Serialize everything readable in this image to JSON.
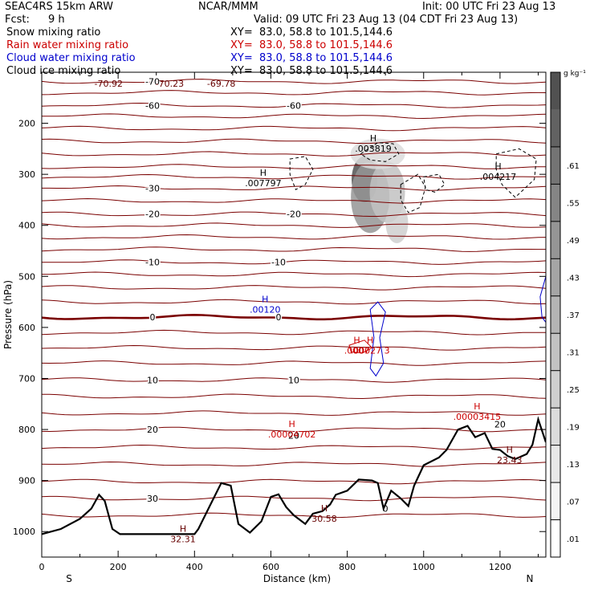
{
  "header": {
    "model": "SEAC4RS 15km ARW",
    "center": "NCAR/MMM",
    "init": "Init: 00 UTC Fri 23 Aug 13",
    "fcst_label": "Fcst:",
    "fcst_value": "9 h",
    "valid": "Valid: 09 UTC Fri 23 Aug 13 (04 CDT Fri 23 Aug 13)"
  },
  "fields": [
    {
      "name": "Snow mixing ratio",
      "xy": "XY=  83.0, 58.8 to 101.5,144.6",
      "color": "#000000"
    },
    {
      "name": "Rain water mixing ratio",
      "xy": "XY=  83.0, 58.8 to 101.5,144.6",
      "color": "#cc0000"
    },
    {
      "name": "Cloud water mixing ratio",
      "xy": "XY=  83.0, 58.8 to 101.5,144.6",
      "color": "#0000cc"
    },
    {
      "name": "Cloud ice mixing ratio",
      "xy": "XY=  83.0, 58.8 to 101.5,144.6",
      "color": "#000000"
    }
  ],
  "chart_data": {
    "type": "cross-section",
    "xlabel": "Distance (km)",
    "ylabel": "Pressure (hPa)",
    "xlim": [
      0,
      1320
    ],
    "ylim": [
      1050,
      100
    ],
    "x_ticks": [
      0,
      200,
      400,
      600,
      800,
      1000,
      1200
    ],
    "x_tick_labels": [
      "0",
      "200",
      "400",
      "600",
      "800",
      "1000",
      "1200"
    ],
    "y_ticks": [
      200,
      300,
      400,
      500,
      600,
      700,
      800,
      900,
      1000
    ],
    "y_tick_labels": [
      "200",
      "300",
      "400",
      "500",
      "600",
      "700",
      "800",
      "900",
      "1000"
    ],
    "end_labels": {
      "left": "S",
      "right": "N"
    },
    "colorbar": {
      "unit": "g kg⁻¹",
      "ticks": [
        ".01",
        ".07",
        ".13",
        ".19",
        ".25",
        ".31",
        ".37",
        ".43",
        ".49",
        ".55",
        ".61"
      ],
      "colors": [
        "#ffffff",
        "#f4f4f4",
        "#e8e8e8",
        "#dcdcdc",
        "#cfcfcf",
        "#c2c2c2",
        "#b4b4b4",
        "#a5a5a5",
        "#959595",
        "#858585",
        "#747474",
        "#626262",
        "#515151"
      ]
    },
    "temperature_contours": [
      {
        "p": 118,
        "label": "-70"
      },
      {
        "p": 140,
        "label": ""
      },
      {
        "p": 165,
        "label": "-60"
      },
      {
        "p": 186,
        "label": ""
      },
      {
        "p": 210,
        "label": ""
      },
      {
        "p": 235,
        "label": ""
      },
      {
        "p": 260,
        "label": ""
      },
      {
        "p": 285,
        "label": ""
      },
      {
        "p": 305,
        "label": ""
      },
      {
        "p": 327,
        "label": "-30"
      },
      {
        "p": 352,
        "label": ""
      },
      {
        "p": 378,
        "label": "-20"
      },
      {
        "p": 400,
        "label": ""
      },
      {
        "p": 423,
        "label": ""
      },
      {
        "p": 447,
        "label": ""
      },
      {
        "p": 472,
        "label": "-10"
      },
      {
        "p": 496,
        "label": ""
      },
      {
        "p": 522,
        "label": ""
      },
      {
        "p": 550,
        "label": ""
      },
      {
        "p": 580,
        "label": "0",
        "bold": true
      },
      {
        "p": 610,
        "label": ""
      },
      {
        "p": 640,
        "label": ""
      },
      {
        "p": 670,
        "label": ""
      },
      {
        "p": 703,
        "label": "10"
      },
      {
        "p": 735,
        "label": ""
      },
      {
        "p": 768,
        "label": ""
      },
      {
        "p": 800,
        "label": "20"
      },
      {
        "p": 835,
        "label": ""
      },
      {
        "p": 868,
        "label": ""
      },
      {
        "p": 902,
        "label": ""
      },
      {
        "p": 935,
        "label": "30"
      },
      {
        "p": 968,
        "label": ""
      }
    ],
    "contour_labels_right": [
      {
        "x": 660,
        "p": 165,
        "label": "-60"
      },
      {
        "x": 660,
        "p": 378,
        "label": "-20"
      },
      {
        "x": 620,
        "p": 472,
        "label": "-10"
      },
      {
        "x": 620,
        "p": 580,
        "label": "0"
      },
      {
        "x": 660,
        "p": 703,
        "label": "10"
      },
      {
        "x": 660,
        "p": 812,
        "label": "20"
      },
      {
        "x": 1200,
        "p": 790,
        "label": "20"
      },
      {
        "x": 900,
        "p": 955,
        "label": "0"
      }
    ],
    "extrema": [
      {
        "x": 175,
        "p": 122,
        "label": "-70.92",
        "color": "#660000"
      },
      {
        "x": 335,
        "p": 122,
        "label": "-70.23",
        "color": "#660000"
      },
      {
        "x": 470,
        "p": 122,
        "label": "-69.78",
        "color": "#660000"
      },
      {
        "x": 868,
        "p": 245,
        "h": "H",
        "label": ".003819",
        "color": "#000000"
      },
      {
        "x": 580,
        "p": 312,
        "h": "H",
        "label": ".007797",
        "color": "#000000"
      },
      {
        "x": 1195,
        "p": 300,
        "h": "H",
        "label": ".004217",
        "color": "#000000"
      },
      {
        "x": 585,
        "p": 560,
        "h": "H",
        "label": ".00120",
        "color": "#0000cc"
      },
      {
        "x": 825,
        "p": 640,
        "h": "H",
        "label": ".0007",
        "color": "#cc0000"
      },
      {
        "x": 860,
        "p": 640,
        "h": "H",
        "label": ".00027 3",
        "color": "#cc0000"
      },
      {
        "x": 1140,
        "p": 770,
        "h": "H",
        "label": ".00003415",
        "color": "#cc0000"
      },
      {
        "x": 655,
        "p": 805,
        "h": "H",
        "label": ".00004702",
        "color": "#cc0000"
      },
      {
        "x": 370,
        "p": 1010,
        "h": "H",
        "label": "32.31",
        "color": "#660000"
      },
      {
        "x": 740,
        "p": 970,
        "h": "H",
        "label": "30.58",
        "color": "#660000"
      },
      {
        "x": 1225,
        "p": 855,
        "h": "H",
        "label": "23.43",
        "color": "#660000"
      }
    ],
    "terrain": [
      [
        0,
        1005
      ],
      [
        50,
        995
      ],
      [
        100,
        975
      ],
      [
        130,
        955
      ],
      [
        150,
        928
      ],
      [
        165,
        940
      ],
      [
        185,
        995
      ],
      [
        205,
        1005
      ],
      [
        300,
        1005
      ],
      [
        400,
        1005
      ],
      [
        410,
        995
      ],
      [
        440,
        950
      ],
      [
        470,
        905
      ],
      [
        495,
        910
      ],
      [
        515,
        985
      ],
      [
        545,
        1002
      ],
      [
        575,
        980
      ],
      [
        600,
        932
      ],
      [
        620,
        927
      ],
      [
        640,
        952
      ],
      [
        660,
        968
      ],
      [
        690,
        985
      ],
      [
        710,
        965
      ],
      [
        735,
        960
      ],
      [
        755,
        947
      ],
      [
        770,
        928
      ],
      [
        800,
        920
      ],
      [
        830,
        898
      ],
      [
        865,
        900
      ],
      [
        880,
        905
      ],
      [
        895,
        955
      ],
      [
        915,
        920
      ],
      [
        940,
        935
      ],
      [
        960,
        950
      ],
      [
        975,
        910
      ],
      [
        1000,
        870
      ],
      [
        1040,
        855
      ],
      [
        1060,
        840
      ],
      [
        1090,
        800
      ],
      [
        1115,
        793
      ],
      [
        1135,
        815
      ],
      [
        1160,
        807
      ],
      [
        1180,
        838
      ],
      [
        1200,
        840
      ],
      [
        1220,
        852
      ],
      [
        1240,
        858
      ],
      [
        1270,
        848
      ],
      [
        1285,
        830
      ],
      [
        1300,
        780
      ],
      [
        1320,
        825
      ]
    ],
    "snow_shading": [
      {
        "x": 845,
        "p": 310,
        "rx": 16,
        "rp": 45,
        "level": 12
      },
      {
        "x": 860,
        "p": 345,
        "rx": 24,
        "rp": 70,
        "level": 8
      },
      {
        "x": 905,
        "p": 335,
        "rx": 22,
        "rp": 60,
        "level": 5
      },
      {
        "x": 930,
        "p": 395,
        "rx": 14,
        "rp": 40,
        "level": 4
      },
      {
        "x": 880,
        "p": 260,
        "rx": 34,
        "rp": 30,
        "level": 3
      }
    ],
    "ice_contours": [
      [
        [
          650,
          270
        ],
        [
          690,
          265
        ],
        [
          710,
          290
        ],
        [
          690,
          320
        ],
        [
          665,
          330
        ],
        [
          650,
          300
        ]
      ],
      [
        [
          835,
          260
        ],
        [
          880,
          238
        ],
        [
          920,
          240
        ],
        [
          935,
          260
        ],
        [
          900,
          275
        ],
        [
          860,
          272
        ]
      ],
      [
        [
          940,
          320
        ],
        [
          985,
          300
        ],
        [
          1005,
          325
        ],
        [
          990,
          365
        ],
        [
          960,
          375
        ],
        [
          940,
          350
        ]
      ],
      [
        [
          1000,
          305
        ],
        [
          1040,
          300
        ],
        [
          1055,
          320
        ],
        [
          1030,
          335
        ],
        [
          1005,
          330
        ]
      ],
      [
        [
          1190,
          260
        ],
        [
          1250,
          250
        ],
        [
          1295,
          270
        ],
        [
          1290,
          310
        ],
        [
          1240,
          345
        ],
        [
          1205,
          320
        ],
        [
          1190,
          290
        ]
      ]
    ],
    "cloud_contours": [
      [
        [
          860,
          565
        ],
        [
          880,
          550
        ],
        [
          900,
          570
        ],
        [
          885,
          620
        ],
        [
          895,
          670
        ],
        [
          875,
          695
        ],
        [
          860,
          680
        ],
        [
          870,
          620
        ]
      ],
      [
        [
          1320,
          500
        ],
        [
          1305,
          540
        ],
        [
          1310,
          580
        ],
        [
          1320,
          590
        ]
      ]
    ],
    "rain_contours": [
      [
        [
          805,
          635
        ],
        [
          845,
          625
        ],
        [
          865,
          640
        ],
        [
          840,
          650
        ],
        [
          810,
          648
        ]
      ]
    ]
  }
}
